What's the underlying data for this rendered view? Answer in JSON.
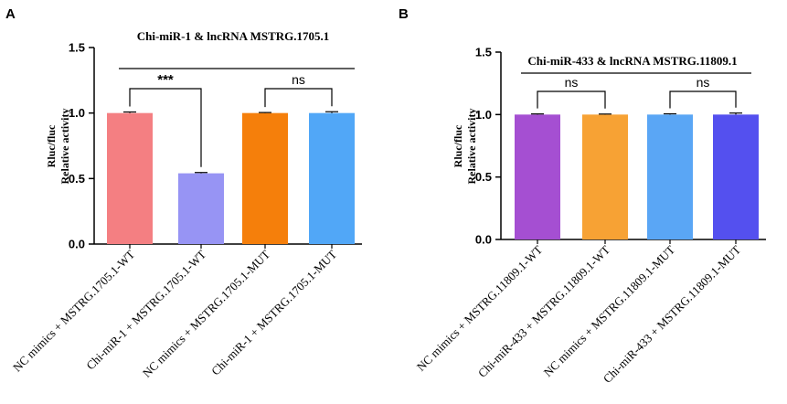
{
  "chart_data": [
    {
      "type": "bar",
      "panel": "A",
      "title": "Chi-miR-1  & lncRNA MSTRG.1705.1",
      "ylabel_lines": [
        "Rluc/fluc",
        "Relative activity"
      ],
      "xlabel": "",
      "ylim": [
        0,
        1.5
      ],
      "yticks": [
        0.0,
        0.5,
        1.0,
        1.5
      ],
      "ytick_labels": [
        "0.0",
        "0.5",
        "1.0",
        "1.5"
      ],
      "categories": [
        "NC mimics + MSTRG.1705.1-WT",
        "Chi-miR-1 + MSTRG.1705.1-WT",
        "NC mimics + MSTRG.1705.1-MUT",
        "Chi-miR-1 + MSTRG.1705.1-MUT"
      ],
      "values": [
        1.0,
        0.54,
        1.0,
        1.0
      ],
      "errors": [
        0.008,
        0.006,
        0.004,
        0.01
      ],
      "colors": [
        "#f47f82",
        "#9794f4",
        "#f57f0b",
        "#51a7f7"
      ],
      "comparisons": [
        {
          "pair": [
            0,
            1
          ],
          "label": "***"
        },
        {
          "pair": [
            2,
            3
          ],
          "label": "ns"
        }
      ]
    },
    {
      "type": "bar",
      "panel": "B",
      "title": "Chi-miR-433  & lncRNA MSTRG.11809.1",
      "ylabel_lines": [
        "Rluc/fluc",
        "Relative activity"
      ],
      "xlabel": "",
      "ylim": [
        0,
        1.5
      ],
      "yticks": [
        0.0,
        0.5,
        1.0,
        1.5
      ],
      "ytick_labels": [
        "0.0",
        "0.5",
        "1.0",
        "1.5"
      ],
      "categories": [
        "NC mimics + MSTRG.11809.1-WT",
        "Chi-miR-433 + MSTRG.11809.1-WT",
        "NC mimics + MSTRG.11809.1-MUT",
        "Chi-miR-433 + MSTRG.11809.1-MUT"
      ],
      "values": [
        1.0,
        1.0,
        1.0,
        1.0
      ],
      "errors": [
        0.005,
        0.004,
        0.006,
        0.012
      ],
      "colors": [
        "#a54fd2",
        "#f7a234",
        "#5aa6f5",
        "#5450ef"
      ],
      "comparisons": [
        {
          "pair": [
            0,
            1
          ],
          "label": "ns"
        },
        {
          "pair": [
            2,
            3
          ],
          "label": "ns"
        }
      ]
    }
  ]
}
